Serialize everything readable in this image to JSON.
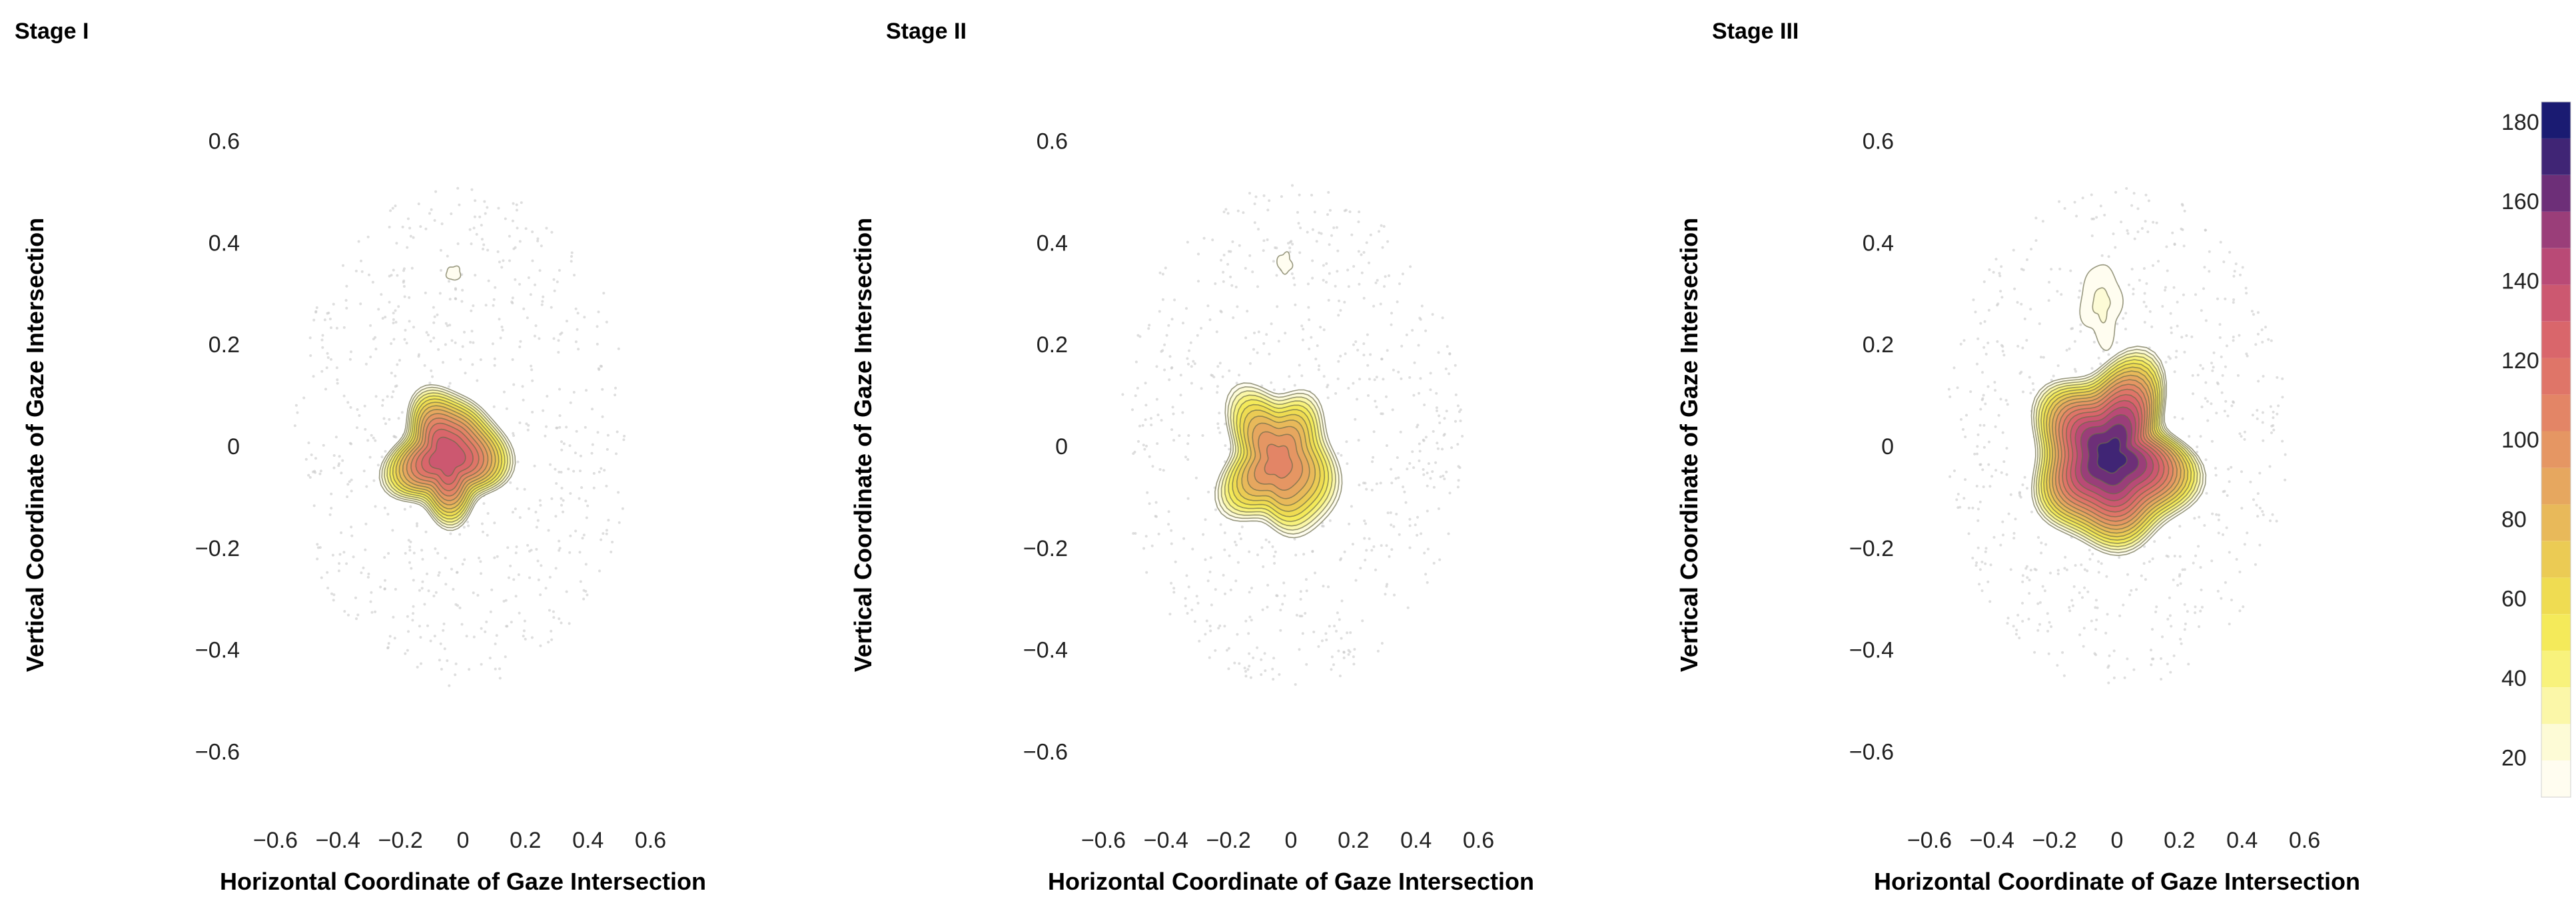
{
  "chart_data": {
    "type": "contour",
    "panels": [
      {
        "title": "Stage I",
        "xlabel": "Horizontal Coordinate of Gaze Intersection",
        "ylabel": "Vertical Coordinate of Gaze Intersection",
        "xlim": [
          -0.65,
          0.65
        ],
        "ylim": [
          -0.72,
          0.72
        ],
        "xticks": [
          -0.6,
          -0.4,
          -0.2,
          0,
          0.2,
          0.4,
          0.6
        ],
        "yticks": [
          -0.6,
          -0.4,
          -0.2,
          0,
          0.2,
          0.4,
          0.6
        ],
        "clusters": [
          {
            "cx": -0.05,
            "cy": -0.02,
            "rx": 0.19,
            "ry": 0.14,
            "peak": 150
          },
          {
            "cx": -0.03,
            "cy": 0.34,
            "rx": 0.055,
            "ry": 0.035,
            "peak": 12
          }
        ]
      },
      {
        "title": "Stage II",
        "xlabel": "Horizontal Coordinate of Gaze Intersection",
        "ylabel": "Vertical Coordinate of Gaze Intersection",
        "xlim": [
          -0.65,
          0.65
        ],
        "ylim": [
          -0.72,
          0.72
        ],
        "xticks": [
          -0.6,
          -0.4,
          -0.2,
          0,
          0.2,
          0.4,
          0.6
        ],
        "yticks": [
          -0.6,
          -0.4,
          -0.2,
          0,
          0.2,
          0.4,
          0.6
        ],
        "clusters": [
          {
            "cx": -0.04,
            "cy": -0.03,
            "rx": 0.2,
            "ry": 0.16,
            "peak": 115
          },
          {
            "cx": -0.02,
            "cy": 0.36,
            "rx": 0.055,
            "ry": 0.05,
            "peak": 12
          }
        ]
      },
      {
        "title": "Stage III",
        "xlabel": "Horizontal Coordinate of Gaze Intersection",
        "ylabel": "Vertical Coordinate of Gaze Intersection",
        "xlim": [
          -0.65,
          0.65
        ],
        "ylim": [
          -0.72,
          0.72
        ],
        "xticks": [
          -0.6,
          -0.4,
          -0.2,
          0,
          0.2,
          0.4,
          0.6
        ],
        "yticks": [
          -0.6,
          -0.4,
          -0.2,
          0,
          0.2,
          0.4,
          0.6
        ],
        "clusters": [
          {
            "cx": -0.02,
            "cy": -0.02,
            "rx": 0.28,
            "ry": 0.19,
            "peak": 185
          },
          {
            "cx": -0.05,
            "cy": 0.28,
            "rx": 0.09,
            "ry": 0.1,
            "peak": 22
          }
        ]
      }
    ],
    "colorbar": {
      "min": 10,
      "max": 185,
      "ticks": [
        20,
        40,
        60,
        80,
        100,
        120,
        140,
        160,
        180
      ],
      "palette": [
        "#fffdf0",
        "#fdfbd6",
        "#fbf7a8",
        "#f8f27c",
        "#f4ea5a",
        "#efdc52",
        "#ebcb54",
        "#e8b95a",
        "#e6a75f",
        "#e59663",
        "#e38566",
        "#df7568",
        "#d9666b",
        "#cc5870",
        "#b94a76",
        "#9a3e79",
        "#6d2f78",
        "#402575",
        "#1a1b72"
      ]
    }
  }
}
